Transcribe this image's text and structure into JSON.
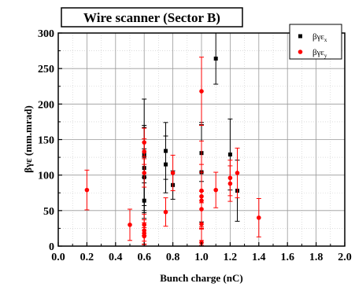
{
  "chart_data": {
    "type": "scatter",
    "title": "Wire scanner (Sector B)",
    "xlabel": "Bunch charge (nC)",
    "ylabel": "βγε (mm.mrad)",
    "xlim": [
      0.0,
      2.0
    ],
    "ylim": [
      0,
      300
    ],
    "x_ticks": [
      "0.0",
      "0.2",
      "0.4",
      "0.6",
      "0.8",
      "1.0",
      "1.2",
      "1.4",
      "1.6",
      "1.8",
      "2.0"
    ],
    "y_ticks": [
      "0",
      "50",
      "100",
      "150",
      "200",
      "250",
      "300"
    ],
    "grid": true,
    "legend_position": "top-right",
    "series": [
      {
        "name": "βγε_x",
        "legend_main": "βγε",
        "legend_sub": "x",
        "color": "#000000",
        "marker": "square",
        "points": [
          {
            "x": 0.6,
            "y": 64,
            "err": 25
          },
          {
            "x": 0.6,
            "y": 97,
            "err": 40
          },
          {
            "x": 0.6,
            "y": 110,
            "err": 60
          },
          {
            "x": 0.6,
            "y": 127,
            "err": 80
          },
          {
            "x": 0.6,
            "y": 132,
            "err": 35
          },
          {
            "x": 0.75,
            "y": 134,
            "err": 40
          },
          {
            "x": 0.75,
            "y": 115,
            "err": 40
          },
          {
            "x": 0.8,
            "y": 86,
            "err": 20
          },
          {
            "x": 1.0,
            "y": 131,
            "err": 40
          },
          {
            "x": 1.0,
            "y": 104,
            "err": 70
          },
          {
            "x": 1.1,
            "y": 264,
            "err": 36
          },
          {
            "x": 1.2,
            "y": 129,
            "err": 50
          },
          {
            "x": 1.25,
            "y": 78,
            "err": 43
          }
        ]
      },
      {
        "name": "βγε_y",
        "legend_main": "βγε",
        "legend_sub": "y",
        "color": "#ff0000",
        "marker": "circle",
        "points": [
          {
            "x": 0.2,
            "y": 79,
            "err": 28
          },
          {
            "x": 0.5,
            "y": 30,
            "err": 22
          },
          {
            "x": 0.6,
            "y": 146,
            "err": 20
          },
          {
            "x": 0.6,
            "y": 133,
            "err": 18
          },
          {
            "x": 0.6,
            "y": 103,
            "err": 20
          },
          {
            "x": 0.6,
            "y": 30,
            "err": 15
          },
          {
            "x": 0.6,
            "y": 22,
            "err": 15
          },
          {
            "x": 0.6,
            "y": 18,
            "err": 15
          },
          {
            "x": 0.6,
            "y": 14,
            "err": 12
          },
          {
            "x": 0.75,
            "y": 48,
            "err": 20
          },
          {
            "x": 0.8,
            "y": 103,
            "err": 25
          },
          {
            "x": 1.0,
            "y": 218,
            "err": 48
          },
          {
            "x": 1.0,
            "y": 78,
            "err": 70
          },
          {
            "x": 1.0,
            "y": 70,
            "err": 45
          },
          {
            "x": 1.0,
            "y": 64,
            "err": 40
          },
          {
            "x": 1.0,
            "y": 52,
            "err": 25
          },
          {
            "x": 1.0,
            "y": 31,
            "err": 30
          },
          {
            "x": 1.0,
            "y": 5,
            "err": 20
          },
          {
            "x": 1.1,
            "y": 79,
            "err": 25
          },
          {
            "x": 1.2,
            "y": 96,
            "err": 25
          },
          {
            "x": 1.2,
            "y": 88,
            "err": 25
          },
          {
            "x": 1.25,
            "y": 103,
            "err": 35
          },
          {
            "x": 1.4,
            "y": 40,
            "err": 27
          }
        ]
      }
    ]
  }
}
